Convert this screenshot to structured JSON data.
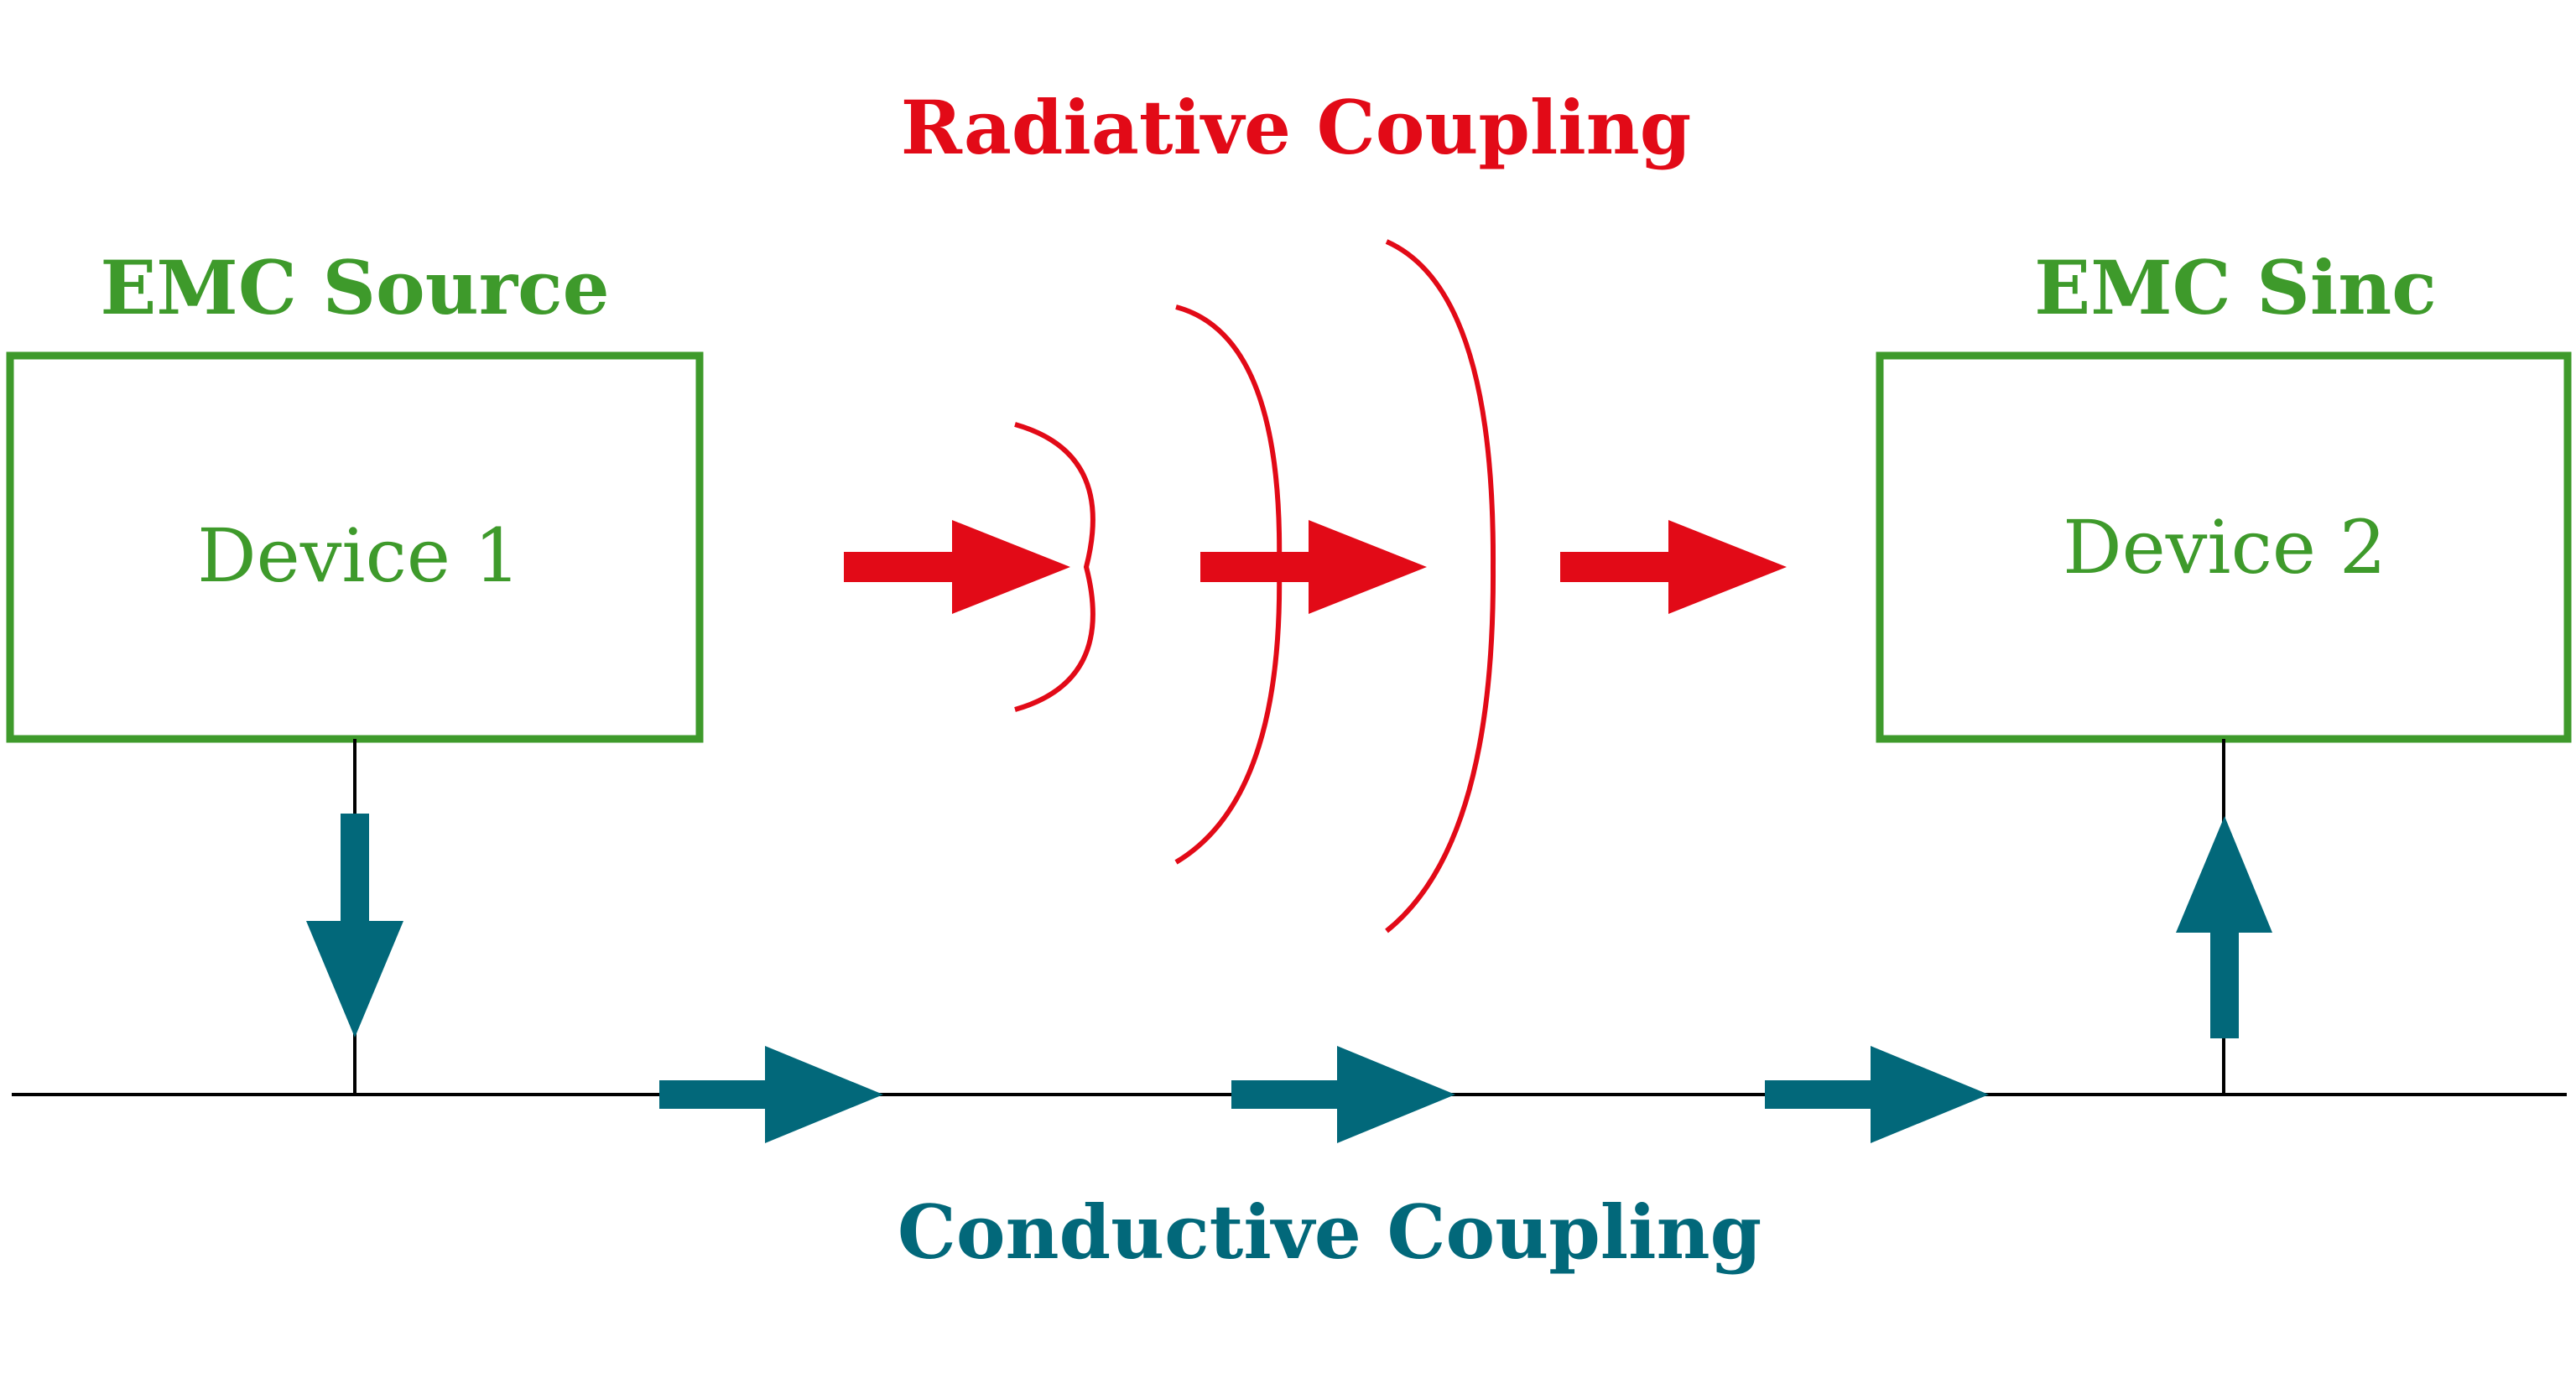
{
  "diagram": {
    "title_radiative": "Radiative Coupling",
    "title_conductive": "Conductive Coupling",
    "source": {
      "heading": "EMC Source",
      "device": "Device 1"
    },
    "sink": {
      "heading": "EMC Sinc",
      "device": "Device 2"
    }
  },
  "colors": {
    "green": "#3e9a2b",
    "red": "#e20a17",
    "teal": "#02687a",
    "line": "#000000"
  }
}
